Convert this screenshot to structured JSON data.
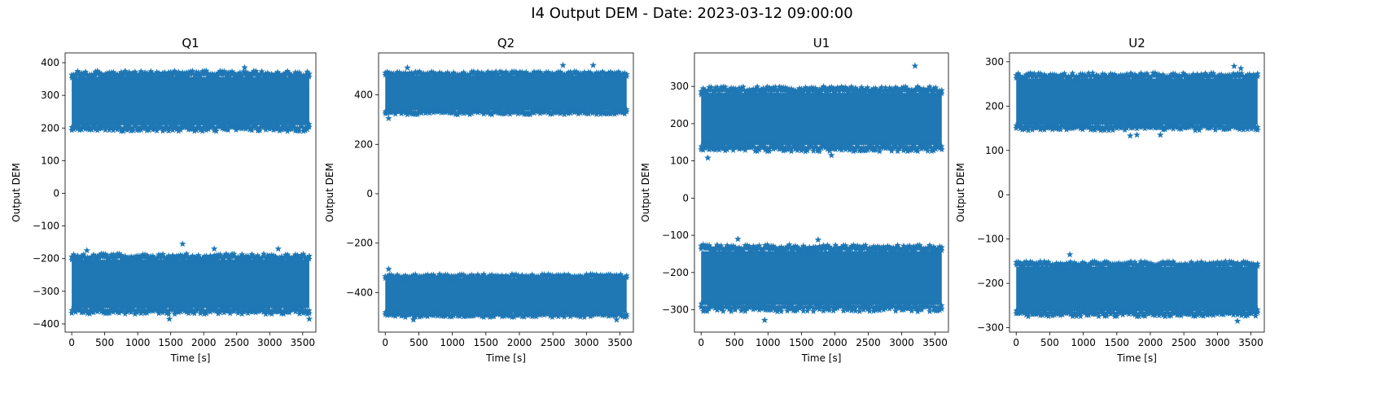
{
  "figure": {
    "title": "I4 Output DEM - Date: 2023-03-12 09:00:00"
  },
  "chart_data": [
    {
      "type": "scatter",
      "title": "Q1",
      "xlabel": "Time [s]",
      "ylabel": "Output DEM",
      "xlim": [
        -100,
        3700
      ],
      "ylim": [
        -425,
        430
      ],
      "xticks": [
        0,
        500,
        1000,
        1500,
        2000,
        2500,
        3000,
        3500
      ],
      "yticks": [
        -400,
        -300,
        -200,
        -100,
        0,
        100,
        200,
        300,
        400
      ],
      "marker": "star",
      "color": "#1f77b4",
      "grid": false,
      "series": [
        {
          "x": [
            0,
            3600
          ],
          "center": 280,
          "band": [
            190,
            375
          ]
        },
        {
          "x": [
            0,
            3600
          ],
          "center": -280,
          "band": [
            -370,
            -185
          ]
        }
      ],
      "outliers": [
        [
          2620,
          385
        ],
        [
          230,
          -175
        ],
        [
          1680,
          -155
        ],
        [
          2160,
          -170
        ],
        [
          3130,
          -170
        ],
        [
          3600,
          -385
        ],
        [
          60,
          365
        ],
        [
          1480,
          -385
        ]
      ]
    },
    {
      "type": "scatter",
      "title": "Q2",
      "xlabel": "Time [s]",
      "ylabel": "Output DEM",
      "xlim": [
        -100,
        3700
      ],
      "ylim": [
        -560,
        570
      ],
      "xticks": [
        0,
        500,
        1000,
        1500,
        2000,
        2500,
        3000,
        3500
      ],
      "yticks": [
        -400,
        -200,
        0,
        200,
        400
      ],
      "marker": "star",
      "color": "#1f77b4",
      "grid": false,
      "series": [
        {
          "x": [
            0,
            3600
          ],
          "center": 405,
          "band": [
            320,
            495
          ]
        },
        {
          "x": [
            0,
            3600
          ],
          "center": -410,
          "band": [
            -500,
            -325
          ]
        }
      ],
      "outliers": [
        [
          2650,
          520
        ],
        [
          3100,
          520
        ],
        [
          330,
          510
        ],
        [
          50,
          305
        ],
        [
          420,
          -510
        ],
        [
          3450,
          -510
        ],
        [
          50,
          -305
        ]
      ]
    },
    {
      "type": "scatter",
      "title": "U1",
      "xlabel": "Time [s]",
      "ylabel": "Output DEM",
      "xlim": [
        -100,
        3700
      ],
      "ylim": [
        -360,
        390
      ],
      "xticks": [
        0,
        500,
        1000,
        1500,
        2000,
        2500,
        3000,
        3500
      ],
      "yticks": [
        -300,
        -200,
        -100,
        0,
        100,
        200,
        300
      ],
      "marker": "star",
      "color": "#1f77b4",
      "grid": false,
      "series": [
        {
          "x": [
            0,
            3600
          ],
          "center": 210,
          "band": [
            125,
            300
          ]
        },
        {
          "x": [
            0,
            3600
          ],
          "center": -210,
          "band": [
            -305,
            -125
          ]
        }
      ],
      "outliers": [
        [
          3200,
          355
        ],
        [
          100,
          108
        ],
        [
          1950,
          115
        ],
        [
          950,
          -328
        ],
        [
          550,
          -110
        ],
        [
          1750,
          -112
        ]
      ]
    },
    {
      "type": "scatter",
      "title": "U2",
      "xlabel": "Time [s]",
      "ylabel": "Output DEM",
      "xlim": [
        -100,
        3700
      ],
      "ylim": [
        -310,
        320
      ],
      "xticks": [
        0,
        500,
        1000,
        1500,
        2000,
        2500,
        3000,
        3500
      ],
      "yticks": [
        -300,
        -200,
        -100,
        0,
        100,
        200,
        300
      ],
      "marker": "star",
      "color": "#1f77b4",
      "grid": false,
      "series": [
        {
          "x": [
            0,
            3600
          ],
          "center": 210,
          "band": [
            145,
            275
          ]
        },
        {
          "x": [
            0,
            3600
          ],
          "center": -210,
          "band": [
            -275,
            -150
          ]
        }
      ],
      "outliers": [
        [
          3250,
          290
        ],
        [
          3350,
          285
        ],
        [
          1700,
          133
        ],
        [
          1800,
          135
        ],
        [
          2150,
          135
        ],
        [
          800,
          -135
        ],
        [
          3300,
          -285
        ]
      ]
    }
  ]
}
